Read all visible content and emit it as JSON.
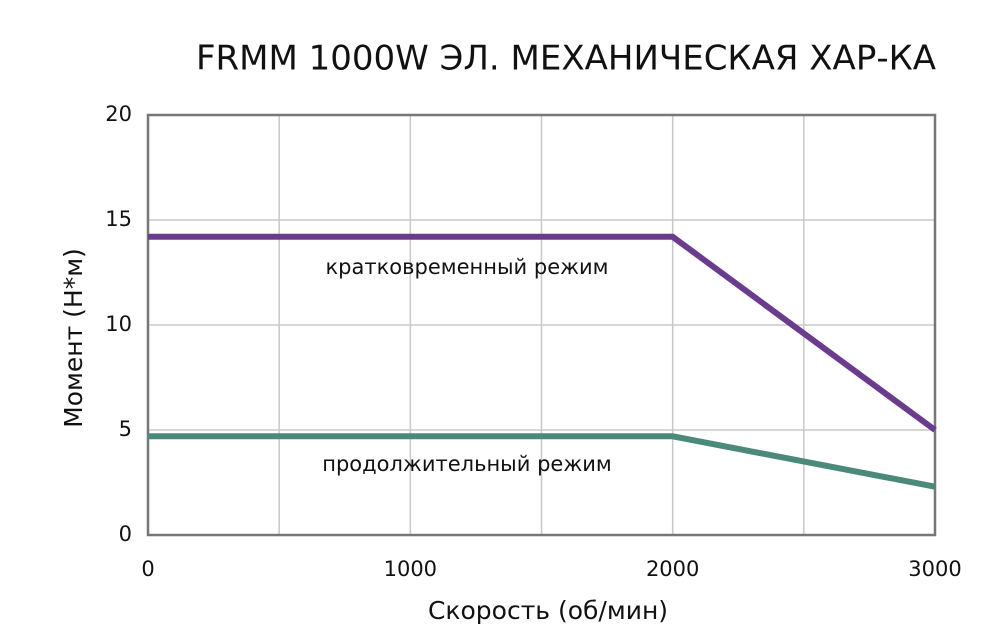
{
  "chart_data": {
    "type": "line",
    "title": "FRMM 1000W ЭЛ. МЕХАНИЧЕСКАЯ ХАР-КА",
    "x_label": "Скорость (об/мин)",
    "y_label": "Момент (Н*м)",
    "x": [
      0,
      2000,
      3000
    ],
    "series": [
      {
        "name": "кратковременный режим",
        "color": "#6b3b8e",
        "values": [
          14.2,
          14.2,
          5
        ]
      },
      {
        "name": "продолжительный режим",
        "color": "#4b8a7a",
        "values": [
          4.7,
          4.7,
          2.3
        ]
      }
    ],
    "xlim": [
      0,
      3000
    ],
    "xticks": [
      0,
      1000,
      2000,
      3000
    ],
    "x_minor_ticks": [
      500,
      1500,
      2500
    ],
    "ylim": [
      0,
      20
    ],
    "yticks": [
      0,
      5,
      10,
      15,
      20
    ],
    "grid": true
  }
}
